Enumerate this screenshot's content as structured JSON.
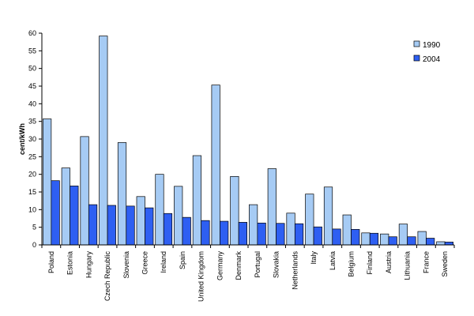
{
  "chart_data": {
    "type": "bar",
    "ylabel": "cent/kWh",
    "xlabel": "",
    "ylim": [
      0,
      60
    ],
    "yticks": [
      0,
      5,
      10,
      15,
      20,
      25,
      30,
      35,
      40,
      45,
      50,
      55,
      60
    ],
    "grid": false,
    "legend_position": "top-right",
    "categories": [
      "Poland",
      "Estonia",
      "Hungary",
      "Czech Republic",
      "Slovenia",
      "Greece",
      "Ireland",
      "Spain",
      "United Kingdom",
      "Germany",
      "Denmark",
      "Portugal",
      "Slovakia",
      "Netherlands",
      "Italy",
      "Latvia",
      "Belgium",
      "Finland",
      "Austria",
      "Lithuania",
      "France",
      "Sweden"
    ],
    "series": [
      {
        "name": "1990",
        "color": "#a6cbf4",
        "values": [
          35.7,
          21.8,
          30.7,
          59.2,
          29.0,
          13.7,
          20.0,
          16.6,
          25.3,
          45.3,
          19.4,
          11.4,
          21.6,
          9.0,
          14.4,
          16.4,
          8.5,
          3.4,
          3.1,
          5.9,
          3.8,
          0.9
        ]
      },
      {
        "name": "2004",
        "color": "#2e5ff2",
        "values": [
          18.2,
          16.7,
          11.4,
          11.2,
          11.0,
          10.5,
          8.9,
          7.8,
          6.9,
          6.7,
          6.4,
          6.2,
          6.1,
          6.0,
          5.1,
          4.5,
          4.4,
          3.3,
          2.3,
          2.3,
          1.9,
          0.8
        ]
      }
    ]
  }
}
